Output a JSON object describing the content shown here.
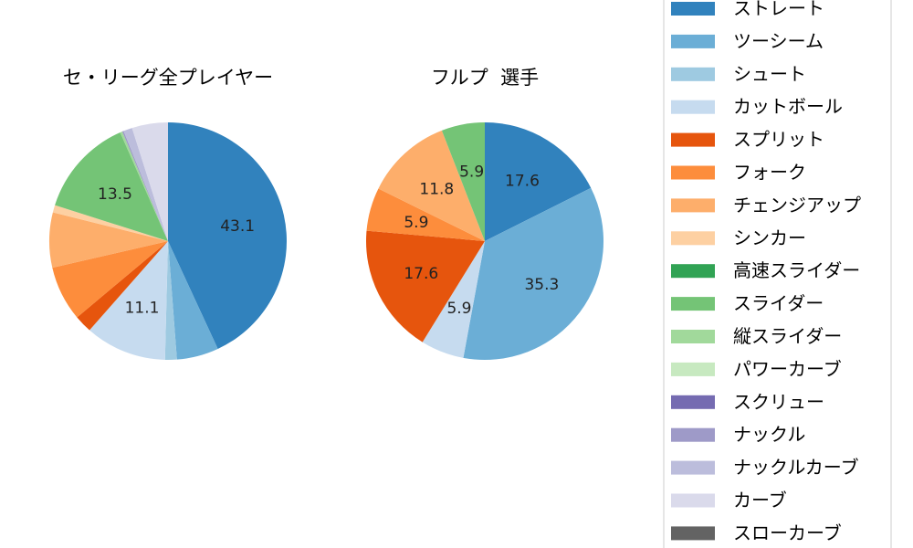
{
  "chart_data": [
    {
      "type": "pie",
      "title": "セ・リーグ全プレイヤー",
      "start": "top",
      "direction": "clockwise",
      "slices": [
        {
          "label": "ストレート",
          "value": 43.1,
          "show_label": true
        },
        {
          "label": "ツーシーム",
          "value": 5.7,
          "show_label": false
        },
        {
          "label": "シュート",
          "value": 1.6,
          "show_label": false
        },
        {
          "label": "カットボール",
          "value": 11.1,
          "show_label": true
        },
        {
          "label": "スプリット",
          "value": 2.4,
          "show_label": false
        },
        {
          "label": "フォーク",
          "value": 7.5,
          "show_label": false
        },
        {
          "label": "チェンジアップ",
          "value": 7.5,
          "show_label": false
        },
        {
          "label": "シンカー",
          "value": 1.0,
          "show_label": false
        },
        {
          "label": "スライダー",
          "value": 13.5,
          "show_label": true
        },
        {
          "label": "縦スライダー",
          "value": 0.3,
          "show_label": false
        },
        {
          "label": "ナックル",
          "value": 0.2,
          "show_label": false
        },
        {
          "label": "ナックルカーブ",
          "value": 1.2,
          "show_label": false
        },
        {
          "label": "カーブ",
          "value": 4.9,
          "show_label": false
        }
      ]
    },
    {
      "type": "pie",
      "title": "フルプ  選手",
      "start": "top",
      "direction": "clockwise",
      "slices": [
        {
          "label": "ストレート",
          "value": 17.6,
          "show_label": true
        },
        {
          "label": "ツーシーム",
          "value": 35.3,
          "show_label": true
        },
        {
          "label": "カットボール",
          "value": 5.9,
          "show_label": true
        },
        {
          "label": "スプリット",
          "value": 17.6,
          "show_label": true
        },
        {
          "label": "フォーク",
          "value": 5.9,
          "show_label": true
        },
        {
          "label": "チェンジアップ",
          "value": 11.8,
          "show_label": true
        },
        {
          "label": "スライダー",
          "value": 5.9,
          "show_label": true
        }
      ]
    }
  ],
  "legend": {
    "placement": "right",
    "items": [
      {
        "label": "ストレート",
        "color": "#3182bd"
      },
      {
        "label": "ツーシーム",
        "color": "#6baed6"
      },
      {
        "label": "シュート",
        "color": "#9ecae1"
      },
      {
        "label": "カットボール",
        "color": "#c6dbef"
      },
      {
        "label": "スプリット",
        "color": "#e6550d"
      },
      {
        "label": "フォーク",
        "color": "#fd8d3c"
      },
      {
        "label": "チェンジアップ",
        "color": "#fdae6b"
      },
      {
        "label": "シンカー",
        "color": "#fdd0a2"
      },
      {
        "label": "高速スライダー",
        "color": "#31a354"
      },
      {
        "label": "スライダー",
        "color": "#74c476"
      },
      {
        "label": "縦スライダー",
        "color": "#a1d99b"
      },
      {
        "label": "パワーカーブ",
        "color": "#c7e9c0"
      },
      {
        "label": "スクリュー",
        "color": "#756bb1"
      },
      {
        "label": "ナックル",
        "color": "#9e9ac8"
      },
      {
        "label": "ナックルカーブ",
        "color": "#bcbddc"
      },
      {
        "label": "カーブ",
        "color": "#dadaeb"
      },
      {
        "label": "スローカーブ",
        "color": "#636363"
      }
    ]
  }
}
